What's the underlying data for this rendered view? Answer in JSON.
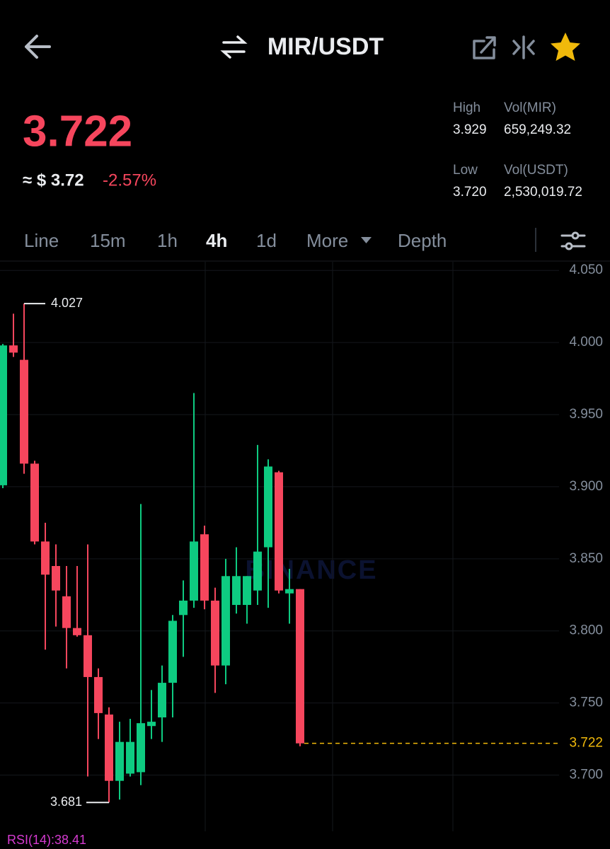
{
  "header": {
    "pair": "MIR/USDT"
  },
  "price": {
    "last": "3.722",
    "approx": "≈ $ 3.72",
    "change": "-2.57%"
  },
  "stats": {
    "high_label": "High",
    "high": "3.929",
    "vol_base_label": "Vol(MIR)",
    "vol_base": "659,249.32",
    "low_label": "Low",
    "low": "3.720",
    "vol_quote_label": "Vol(USDT)",
    "vol_quote": "2,530,019.72"
  },
  "tabs": [
    "Line",
    "15m",
    "1h",
    "4h",
    "1d",
    "More",
    "Depth"
  ],
  "active_tab": 3,
  "chart_data": {
    "type": "candlestick",
    "watermark": "BINANCE",
    "up_color": "#0ecb81",
    "down_color": "#f6465d",
    "open": [
      3.901,
      3.998,
      3.988,
      3.916,
      3.862,
      3.845,
      3.824,
      3.802,
      3.797,
      3.768,
      3.742,
      3.696,
      3.701,
      3.702,
      3.734,
      3.74,
      3.764,
      3.811,
      3.821,
      3.867,
      3.821,
      3.776,
      3.818,
      3.818,
      3.828,
      3.858,
      3.91,
      3.826,
      3.829
    ],
    "high": [
      3.999,
      4.02,
      4.027,
      3.918,
      3.875,
      3.86,
      3.845,
      3.845,
      3.86,
      3.774,
      3.747,
      3.737,
      3.739,
      3.888,
      3.759,
      3.776,
      3.811,
      3.835,
      3.965,
      3.873,
      3.83,
      3.85,
      3.858,
      3.838,
      3.929,
      3.919,
      3.911,
      3.843,
      3.829
    ],
    "low": [
      3.899,
      3.99,
      3.909,
      3.86,
      3.787,
      3.803,
      3.774,
      3.796,
      3.699,
      3.725,
      3.681,
      3.683,
      3.699,
      3.693,
      3.725,
      3.723,
      3.74,
      3.782,
      3.816,
      3.815,
      3.757,
      3.763,
      3.812,
      3.805,
      3.818,
      3.816,
      3.826,
      3.805,
      3.72
    ],
    "close": [
      3.998,
      3.993,
      3.916,
      3.862,
      3.839,
      3.828,
      3.802,
      3.797,
      3.768,
      3.743,
      3.696,
      3.723,
      3.723,
      3.736,
      3.737,
      3.764,
      3.807,
      3.821,
      3.862,
      3.821,
      3.776,
      3.838,
      3.838,
      3.838,
      3.855,
      3.914,
      3.828,
      3.829,
      3.722
    ],
    "ylim": [
      3.661,
      4.056
    ],
    "yticks": [
      {
        "value": 4.05,
        "label": "4.050"
      },
      {
        "value": 4.0,
        "label": "4.000"
      },
      {
        "value": 3.95,
        "label": "3.950"
      },
      {
        "value": 3.9,
        "label": "3.900"
      },
      {
        "value": 3.85,
        "label": "3.850"
      },
      {
        "value": 3.8,
        "label": "3.800"
      },
      {
        "value": 3.75,
        "label": "3.750"
      },
      {
        "value": 3.7,
        "label": "3.700"
      }
    ],
    "grid": true,
    "high_mark": 4.027,
    "low_mark": 3.681,
    "last_price": 3.722,
    "last_price_color": "#f0b90b",
    "indicator": "RSI(14):38.41"
  }
}
